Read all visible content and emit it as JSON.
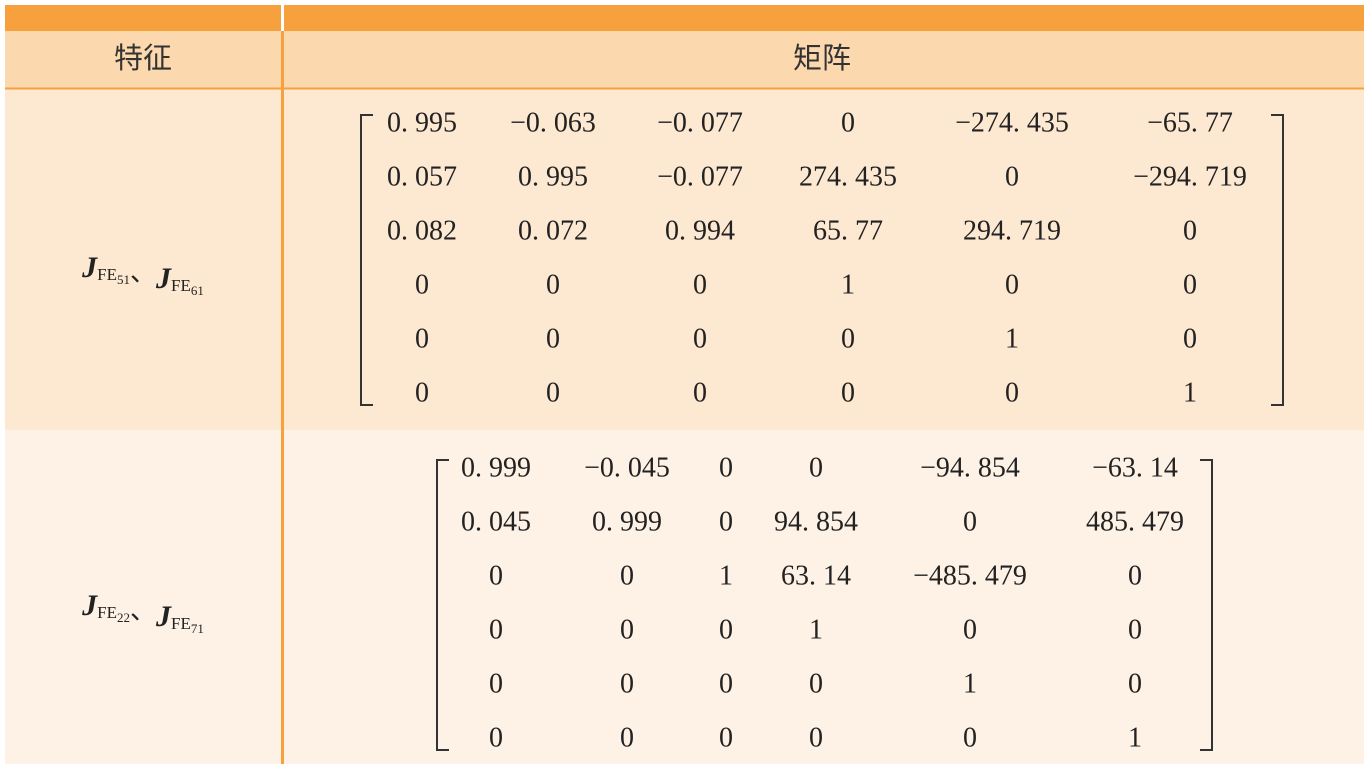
{
  "table": {
    "headers": [
      "特征",
      "矩阵"
    ],
    "rows": [
      {
        "feature": [
          {
            "symbol": "J",
            "sub": "FE",
            "index": "51"
          },
          {
            "symbol": "J",
            "sub": "FE",
            "index": "61"
          }
        ],
        "separator": "、",
        "matrix": [
          [
            "0. 995",
            "−0. 063",
            "−0. 077",
            "0",
            "−274. 435",
            "−65. 77"
          ],
          [
            "0. 057",
            "0. 995",
            "−0. 077",
            "274. 435",
            "0",
            "−294. 719"
          ],
          [
            "0. 082",
            "0. 072",
            "0. 994",
            "65. 77",
            "294. 719",
            "0"
          ],
          [
            "0",
            "0",
            "0",
            "1",
            "0",
            "0"
          ],
          [
            "0",
            "0",
            "0",
            "0",
            "1",
            "0"
          ],
          [
            "0",
            "0",
            "0",
            "0",
            "0",
            "1"
          ]
        ]
      },
      {
        "feature": [
          {
            "symbol": "J",
            "sub": "FE",
            "index": "22"
          },
          {
            "symbol": "J",
            "sub": "FE",
            "index": "71"
          }
        ],
        "separator": "、",
        "matrix": [
          [
            "0. 999",
            "−0. 045",
            "0",
            "0",
            "−94. 854",
            "−63. 14"
          ],
          [
            "0. 045",
            "0. 999",
            "0",
            "94. 854",
            "0",
            "485. 479"
          ],
          [
            "0",
            "0",
            "1",
            "63. 14",
            "−485. 479",
            "0"
          ],
          [
            "0",
            "0",
            "0",
            "1",
            "0",
            "0"
          ],
          [
            "0",
            "0",
            "0",
            "0",
            "1",
            "0"
          ],
          [
            "0",
            "0",
            "0",
            "0",
            "0",
            "1"
          ]
        ]
      }
    ]
  }
}
